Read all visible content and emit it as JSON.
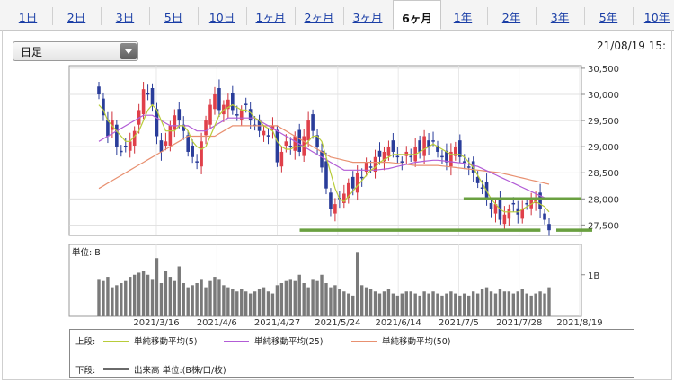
{
  "tabs": [
    {
      "label": "1日"
    },
    {
      "label": "2日"
    },
    {
      "label": "3日"
    },
    {
      "label": "5日"
    },
    {
      "label": "10日"
    },
    {
      "label": "1ヶ月"
    },
    {
      "label": "2ヶ月"
    },
    {
      "label": "3ヶ月"
    },
    {
      "label": "6ヶ月",
      "active": true
    },
    {
      "label": "1年"
    },
    {
      "label": "2年"
    },
    {
      "label": "3年"
    },
    {
      "label": "5年"
    },
    {
      "label": "10年"
    }
  ],
  "period_select": {
    "value": "日足"
  },
  "timestamp": "21/08/19 15:",
  "legend": {
    "upper_label": "上段:",
    "lower_label": "下段:",
    "items": [
      {
        "label": "単純移動平均(5)",
        "color": "#b8cc3a"
      },
      {
        "label": "単純移動平均(25)",
        "color": "#b25cd6"
      },
      {
        "label": "単純移動平均(50)",
        "color": "#e89070"
      }
    ],
    "volume_label": "出来高 単位:(B株/口/枚)",
    "volume_color": "#6a6a6a"
  },
  "chart_data": {
    "type": "candlestick",
    "y_ticks": [
      "30,500",
      "30,000",
      "29,500",
      "29,000",
      "28,500",
      "28,000",
      "27,500"
    ],
    "ylim": [
      27300,
      30550
    ],
    "x_labels": [
      "2021/3/16",
      "2021/4/6",
      "2021/4/27",
      "2021/5/24",
      "2021/6/14",
      "2021/7/5",
      "2021/7/28",
      "2021/8/19"
    ],
    "close": [
      30000,
      29600,
      29200,
      29500,
      29000,
      28900,
      29000,
      29100,
      29300,
      29700,
      30100,
      30000,
      29800,
      29200,
      28900,
      29100,
      29400,
      29600,
      29500,
      29300,
      28900,
      28800,
      28700,
      29100,
      29500,
      29800,
      30000,
      29700,
      29800,
      29900,
      29700,
      29600,
      29700,
      29800,
      29500,
      29400,
      29300,
      29300,
      29200,
      29400,
      28700,
      28900,
      29100,
      29000,
      29200,
      28900,
      29200,
      29500,
      29300,
      29000,
      28600,
      28200,
      27800,
      27900,
      28000,
      28100,
      28300,
      28200,
      28500,
      28400,
      28700,
      28600,
      28800,
      28800,
      28900,
      29000,
      28900,
      28800,
      28700,
      28900,
      28800,
      29000,
      28900,
      29200,
      29000,
      29100,
      28900,
      28800,
      28700,
      28900,
      29000,
      28800,
      28700,
      28600,
      28500,
      28300,
      28200,
      28000,
      27800,
      27900,
      27600,
      27700,
      27800,
      27900,
      27700,
      27800,
      27900,
      28000,
      28000,
      27800,
      27600,
      27400
    ],
    "ma5": [
      29800,
      29700,
      29500,
      29400,
      29300,
      29200,
      29100,
      29100,
      29200,
      29300,
      29500,
      29700,
      29800,
      29700,
      29500,
      29300,
      29300,
      29300,
      29400,
      29400,
      29300,
      29100,
      29000,
      28950,
      29000,
      29200,
      29400,
      29600,
      29700,
      29750,
      29800,
      29750,
      29700,
      29700,
      29650,
      29550,
      29500,
      29400,
      29350,
      29300,
      29100,
      29000,
      28950,
      28950,
      29000,
      29000,
      29000,
      29100,
      29200,
      29200,
      29100,
      28800,
      28500,
      28200,
      28000,
      27950,
      28050,
      28150,
      28250,
      28350,
      28450,
      28550,
      28600,
      28700,
      28750,
      28800,
      28850,
      28850,
      28850,
      28850,
      28850,
      28850,
      28900,
      28950,
      29000,
      29050,
      29000,
      28950,
      28900,
      28850,
      28850,
      28850,
      28800,
      28700,
      28600,
      28450,
      28300,
      28150,
      28000,
      27900,
      27800,
      27750,
      27750,
      27750,
      27750,
      27800,
      27850,
      27900,
      27950,
      27900,
      27850,
      27750
    ],
    "ma25": [
      29100,
      29150,
      29200,
      29250,
      29300,
      29350,
      29400,
      29450,
      29500,
      29550,
      29600,
      29600,
      29600,
      29550,
      29500,
      29450,
      29400,
      29400,
      29400,
      29400,
      29400,
      29350,
      29300,
      29300,
      29300,
      29350,
      29400,
      29450,
      29500,
      29550,
      29550,
      29550,
      29550,
      29550,
      29550,
      29550,
      29500,
      29450,
      29400,
      29350,
      29300,
      29250,
      29200,
      29150,
      29100,
      29050,
      29000,
      28950,
      28900,
      28850,
      28800,
      28750,
      28700,
      28650,
      28600,
      28550,
      28550,
      28550,
      28550,
      28550,
      28550,
      28550,
      28550,
      28560,
      28570,
      28580,
      28600,
      28620,
      28640,
      28660,
      28680,
      28700,
      28710,
      28720,
      28730,
      28740,
      28740,
      28730,
      28720,
      28710,
      28700,
      28690,
      28680,
      28660,
      28640,
      28620,
      28580,
      28540,
      28500,
      28460,
      28420,
      28380,
      28340,
      28300,
      28260,
      28220,
      28180,
      28140,
      28100,
      28060,
      28020,
      27980
    ],
    "ma50": [
      28200,
      28250,
      28300,
      28350,
      28400,
      28450,
      28500,
      28550,
      28600,
      28650,
      28700,
      28750,
      28800,
      28850,
      28900,
      28950,
      29000,
      29050,
      29100,
      29150,
      29200,
      29200,
      29200,
      29200,
      29200,
      29200,
      29200,
      29250,
      29300,
      29350,
      29400,
      29400,
      29400,
      29400,
      29400,
      29400,
      29400,
      29400,
      29400,
      29400,
      29400,
      29350,
      29300,
      29250,
      29200,
      29150,
      29100,
      29050,
      29000,
      28950,
      28900,
      28850,
      28800,
      28780,
      28760,
      28740,
      28720,
      28700,
      28700,
      28700,
      28700,
      28700,
      28700,
      28700,
      28700,
      28700,
      28690,
      28680,
      28670,
      28660,
      28650,
      28640,
      28640,
      28640,
      28640,
      28640,
      28640,
      28630,
      28620,
      28610,
      28600,
      28590,
      28580,
      28570,
      28560,
      28550,
      28540,
      28530,
      28520,
      28510,
      28500,
      28480,
      28460,
      28440,
      28420,
      28400,
      28380,
      28360,
      28340,
      28320,
      28300,
      28280
    ],
    "volume_label": "単位: B",
    "volume_tick": "1B",
    "volume": [
      0.9,
      0.85,
      0.95,
      0.7,
      0.75,
      0.8,
      0.85,
      0.95,
      1.0,
      1.05,
      1.1,
      1.0,
      0.9,
      1.4,
      0.8,
      1.1,
      0.95,
      0.85,
      1.2,
      0.8,
      0.7,
      0.75,
      0.8,
      0.9,
      0.7,
      0.85,
      0.95,
      0.9,
      0.75,
      0.7,
      0.65,
      0.6,
      0.65,
      0.6,
      0.55,
      0.6,
      0.65,
      0.7,
      0.6,
      0.55,
      0.75,
      0.8,
      0.85,
      0.9,
      0.85,
      1.0,
      0.8,
      0.7,
      0.9,
      0.85,
      1.0,
      0.8,
      0.7,
      0.75,
      0.65,
      0.6,
      0.55,
      0.5,
      1.55,
      0.75,
      0.7,
      0.65,
      0.6,
      0.55,
      0.6,
      0.65,
      0.55,
      0.5,
      0.55,
      0.6,
      0.6,
      0.55,
      0.5,
      0.6,
      0.55,
      0.6,
      0.55,
      0.5,
      0.55,
      0.6,
      0.55,
      0.5,
      0.55,
      0.5,
      0.6,
      0.55,
      0.65,
      0.7,
      0.6,
      0.55,
      0.65,
      0.6,
      0.6,
      0.55,
      0.6,
      0.65,
      0.55,
      0.5,
      0.55,
      0.6,
      0.55,
      0.7
    ],
    "horizontal_lines": [
      {
        "y": 28000,
        "x_start": 0.77,
        "x_end": 1.0,
        "color": "#6aa040"
      },
      {
        "y": 27400,
        "x_start": 0.45,
        "x_end": 0.92,
        "color": "#6aa040"
      }
    ]
  }
}
